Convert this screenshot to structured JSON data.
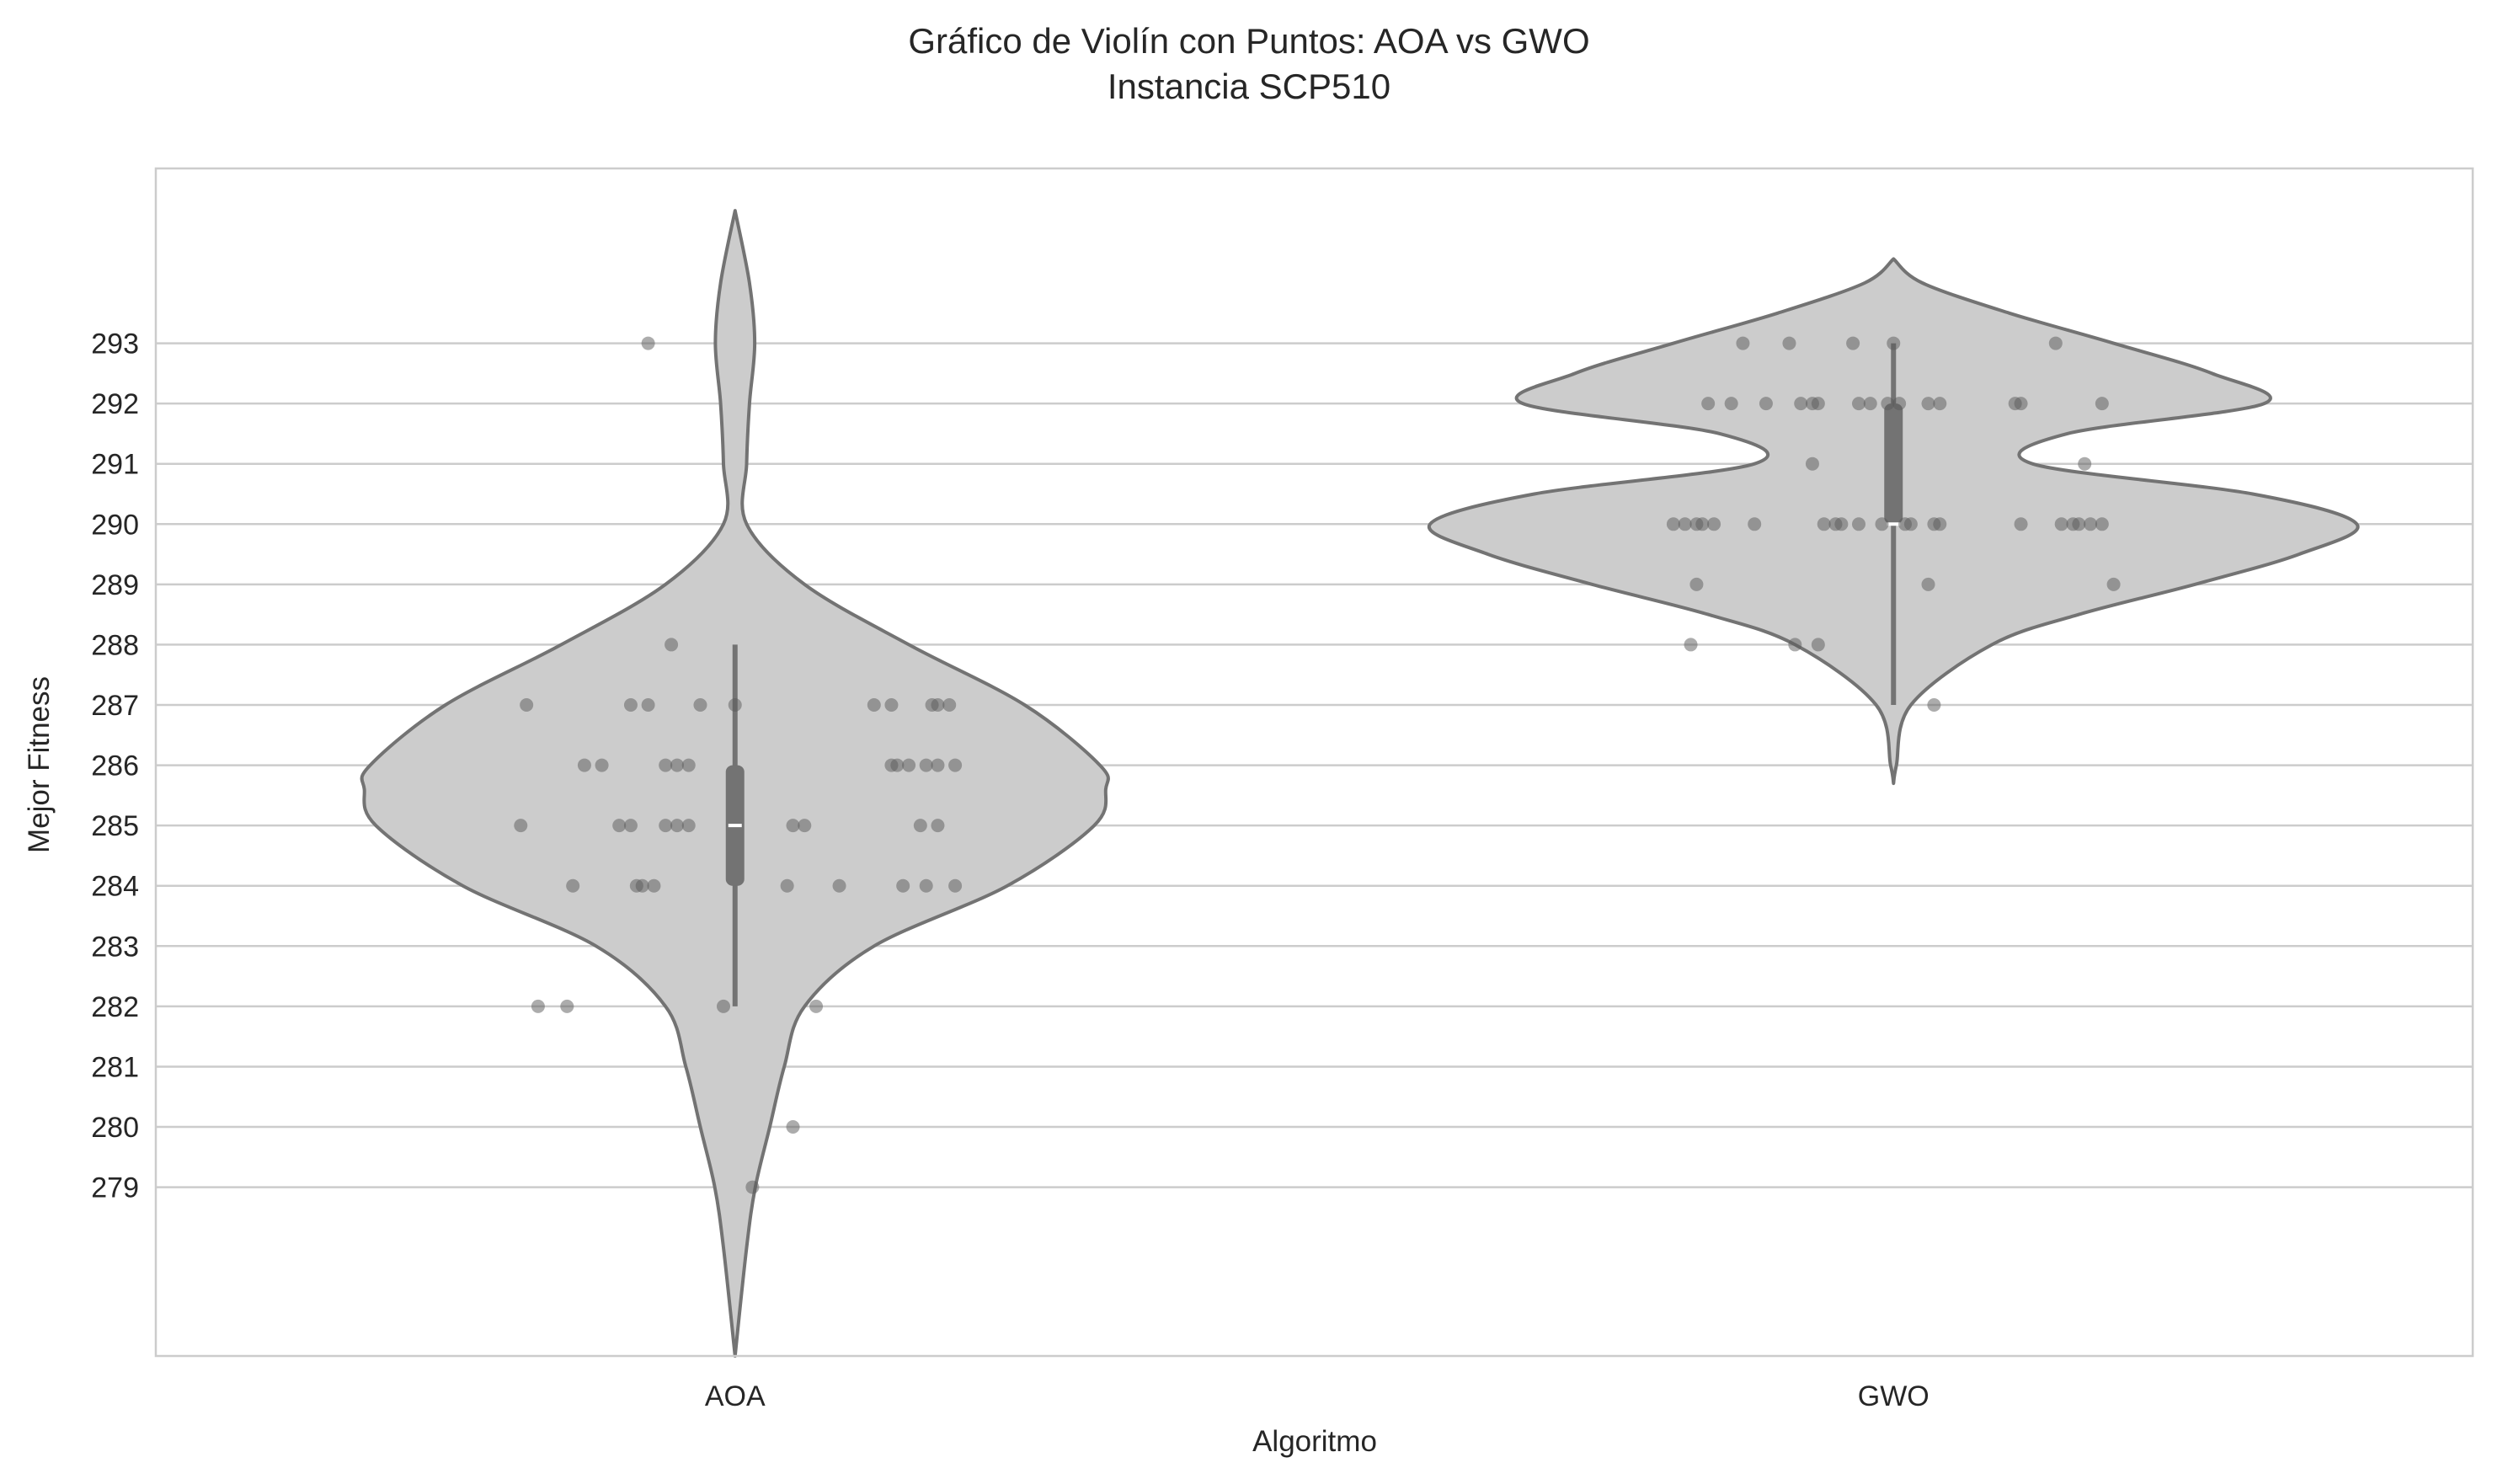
{
  "chart_data": {
    "type": "violin",
    "title": "Gráfico de Violín con Puntos: AOA vs GWO",
    "subtitle": "Instancia SCP510",
    "xlabel": "Algoritmo",
    "ylabel": "Mejor Fitness",
    "categories": [
      "AOA",
      "GWO"
    ],
    "yticks": [
      279,
      280,
      281,
      282,
      283,
      284,
      285,
      286,
      287,
      288,
      289,
      290,
      291,
      292,
      293
    ],
    "ylim": [
      276.2,
      295.9
    ],
    "grid": true,
    "series": [
      {
        "name": "AOA",
        "points": [
          {
            "x": -0.18,
            "y": 287
          },
          {
            "x": -0.13,
            "y": 286
          },
          {
            "x": -0.115,
            "y": 286
          },
          {
            "x": -0.185,
            "y": 285
          },
          {
            "x": -0.14,
            "y": 284
          },
          {
            "x": -0.17,
            "y": 282
          },
          {
            "x": -0.145,
            "y": 282
          },
          {
            "x": -0.1,
            "y": 285
          },
          {
            "x": -0.09,
            "y": 285
          },
          {
            "x": -0.09,
            "y": 287
          },
          {
            "x": -0.075,
            "y": 293
          },
          {
            "x": -0.075,
            "y": 287
          },
          {
            "x": -0.085,
            "y": 284
          },
          {
            "x": -0.08,
            "y": 284
          },
          {
            "x": -0.07,
            "y": 284
          },
          {
            "x": -0.06,
            "y": 286
          },
          {
            "x": -0.05,
            "y": 286
          },
          {
            "x": -0.055,
            "y": 288
          },
          {
            "x": -0.04,
            "y": 286
          },
          {
            "x": -0.06,
            "y": 285
          },
          {
            "x": -0.05,
            "y": 285
          },
          {
            "x": -0.04,
            "y": 285
          },
          {
            "x": -0.03,
            "y": 287
          },
          {
            "x": -0.01,
            "y": 282
          },
          {
            "x": 0.0,
            "y": 287
          },
          {
            "x": 0.015,
            "y": 279
          },
          {
            "x": 0.045,
            "y": 284
          },
          {
            "x": 0.05,
            "y": 285
          },
          {
            "x": 0.06,
            "y": 285
          },
          {
            "x": 0.07,
            "y": 282
          },
          {
            "x": 0.05,
            "y": 280
          },
          {
            "x": 0.09,
            "y": 284
          },
          {
            "x": 0.12,
            "y": 287
          },
          {
            "x": 0.135,
            "y": 287
          },
          {
            "x": 0.135,
            "y": 286
          },
          {
            "x": 0.14,
            "y": 286
          },
          {
            "x": 0.15,
            "y": 286
          },
          {
            "x": 0.145,
            "y": 284
          },
          {
            "x": 0.16,
            "y": 285
          },
          {
            "x": 0.165,
            "y": 286
          },
          {
            "x": 0.17,
            "y": 287
          },
          {
            "x": 0.175,
            "y": 287
          },
          {
            "x": 0.165,
            "y": 284
          },
          {
            "x": 0.175,
            "y": 285
          },
          {
            "x": 0.175,
            "y": 286
          },
          {
            "x": 0.185,
            "y": 287
          },
          {
            "x": 0.19,
            "y": 284
          },
          {
            "x": 0.19,
            "y": 286
          }
        ],
        "box": {
          "q1": 284,
          "median": 285,
          "q3": 286,
          "whisker_low": 282,
          "whisker_high": 288
        },
        "violin": {
          "y": [
            276.2,
            278,
            279,
            280,
            281,
            282,
            283,
            284,
            285,
            285.6,
            286,
            287,
            288,
            289,
            290,
            291,
            292,
            293,
            294,
            295.2
          ],
          "width": [
            0,
            0.02,
            0.035,
            0.06,
            0.085,
            0.12,
            0.24,
            0.47,
            0.62,
            0.64,
            0.63,
            0.5,
            0.3,
            0.12,
            0.02,
            0.02,
            0.025,
            0.034,
            0.025,
            0
          ]
        }
      },
      {
        "name": "GWO",
        "points": [
          {
            "x": -0.19,
            "y": 290
          },
          {
            "x": -0.18,
            "y": 290
          },
          {
            "x": -0.17,
            "y": 290
          },
          {
            "x": -0.175,
            "y": 288
          },
          {
            "x": -0.17,
            "y": 289
          },
          {
            "x": -0.165,
            "y": 290
          },
          {
            "x": -0.16,
            "y": 292
          },
          {
            "x": -0.155,
            "y": 290
          },
          {
            "x": -0.14,
            "y": 292
          },
          {
            "x": -0.13,
            "y": 293
          },
          {
            "x": -0.12,
            "y": 290
          },
          {
            "x": -0.11,
            "y": 292
          },
          {
            "x": -0.09,
            "y": 293
          },
          {
            "x": -0.085,
            "y": 288
          },
          {
            "x": -0.08,
            "y": 292
          },
          {
            "x": -0.07,
            "y": 291
          },
          {
            "x": -0.07,
            "y": 292
          },
          {
            "x": -0.065,
            "y": 288
          },
          {
            "x": -0.065,
            "y": 292
          },
          {
            "x": -0.06,
            "y": 290
          },
          {
            "x": -0.05,
            "y": 290
          },
          {
            "x": -0.045,
            "y": 290
          },
          {
            "x": -0.035,
            "y": 293
          },
          {
            "x": -0.03,
            "y": 292
          },
          {
            "x": -0.03,
            "y": 290
          },
          {
            "x": -0.02,
            "y": 292
          },
          {
            "x": -0.01,
            "y": 290
          },
          {
            "x": -0.005,
            "y": 292
          },
          {
            "x": 0.0,
            "y": 293
          },
          {
            "x": 0.005,
            "y": 292
          },
          {
            "x": 0.01,
            "y": 290
          },
          {
            "x": 0.015,
            "y": 290
          },
          {
            "x": 0.03,
            "y": 292
          },
          {
            "x": 0.03,
            "y": 289
          },
          {
            "x": 0.035,
            "y": 290
          },
          {
            "x": 0.04,
            "y": 292
          },
          {
            "x": 0.035,
            "y": 287
          },
          {
            "x": 0.04,
            "y": 290
          },
          {
            "x": 0.105,
            "y": 292
          },
          {
            "x": 0.11,
            "y": 292
          },
          {
            "x": 0.11,
            "y": 290
          },
          {
            "x": 0.14,
            "y": 293
          },
          {
            "x": 0.145,
            "y": 290
          },
          {
            "x": 0.155,
            "y": 290
          },
          {
            "x": 0.16,
            "y": 290
          },
          {
            "x": 0.165,
            "y": 291
          },
          {
            "x": 0.17,
            "y": 290
          },
          {
            "x": 0.18,
            "y": 292
          },
          {
            "x": 0.18,
            "y": 290
          },
          {
            "x": 0.19,
            "y": 289
          }
        ],
        "box": {
          "q1": 290,
          "median": 290,
          "q3": 292,
          "whisker_low": 287,
          "whisker_high": 293
        },
        "violin": {
          "y": [
            285.7,
            286,
            287,
            288,
            288.5,
            289,
            289.5,
            290,
            290.5,
            291,
            291.5,
            292,
            292.5,
            293,
            293.5,
            294,
            294.4
          ],
          "width": [
            0,
            0.005,
            0.03,
            0.17,
            0.32,
            0.52,
            0.7,
            0.8,
            0.62,
            0.24,
            0.3,
            0.64,
            0.55,
            0.38,
            0.2,
            0.05,
            0
          ]
        }
      }
    ]
  }
}
